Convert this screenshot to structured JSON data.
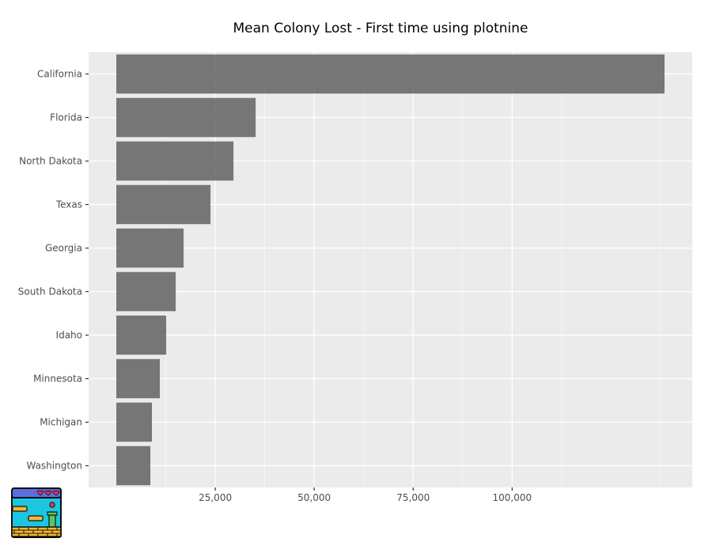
{
  "chart_data": {
    "type": "bar",
    "orientation": "horizontal",
    "title": "Mean Colony Lost - First time using plotnine",
    "xlabel": "",
    "ylabel": "",
    "categories": [
      "California",
      "Florida",
      "North Dakota",
      "Texas",
      "Georgia",
      "South Dakota",
      "Idaho",
      "Minnesota",
      "Michigan",
      "Washington"
    ],
    "values": [
      138500,
      35200,
      29600,
      23800,
      17000,
      15000,
      12600,
      11000,
      9000,
      8600
    ],
    "xlim": [
      -7000,
      145500
    ],
    "x_ticks": [
      25000,
      50000,
      75000,
      100000
    ],
    "x_tick_labels": [
      "25,000",
      "50,000",
      "75,000",
      "100,000"
    ],
    "grid": true,
    "bar_color": "#595959",
    "panel_color": "#ebebeb"
  }
}
